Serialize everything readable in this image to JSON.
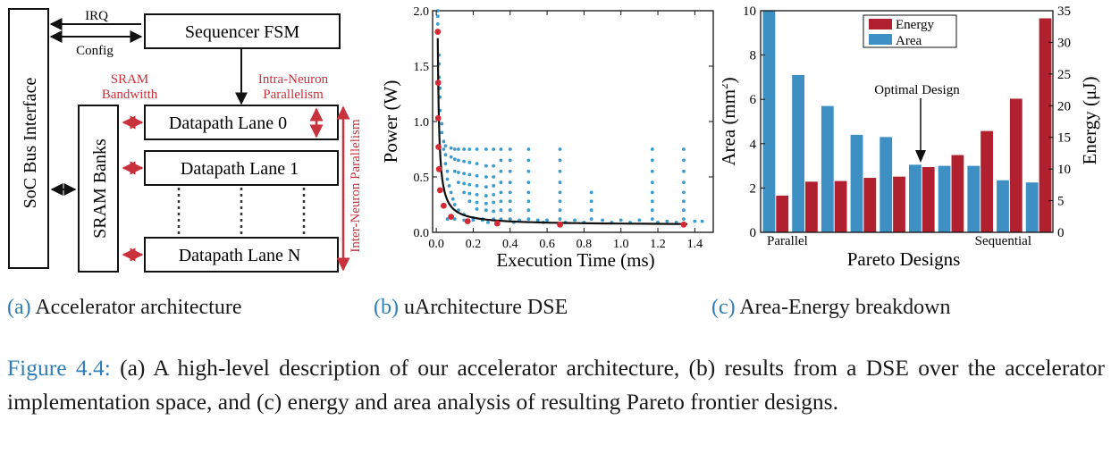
{
  "panel_a": {
    "soc_bus": "SoC Bus Interface",
    "sequencer": "Sequencer FSM",
    "irq": "IRQ",
    "config": "Config",
    "sram_bandwidth_line1": "SRAM",
    "sram_bandwidth_line2": "Bandwitth",
    "intra_line1": "Intra-Neuron",
    "intra_line2": "Parallelism",
    "inter": "Inter-Neuron Parallelism",
    "sram_banks": "SRAM Banks",
    "lane0": "Datapath Lane 0",
    "lane1": "Datapath Lane 1",
    "laneN": "Datapath Lane N",
    "accent_color": "#c8323c"
  },
  "chart_data": [
    {
      "type": "scatter",
      "xlabel": "Execution Time (ms)",
      "ylabel": "Power (W)",
      "xlim": [
        -0.02,
        1.5
      ],
      "ylim": [
        0,
        2.0
      ],
      "xticks": [
        "0.0",
        "0.2",
        "0.4",
        "0.6",
        "0.8",
        "1.0",
        "1.2",
        "1.4"
      ],
      "yticks": [
        "0.0",
        "0.5",
        "1.0",
        "1.5",
        "2.0"
      ],
      "design_points": [
        [
          0.008,
          2.0
        ],
        [
          0.008,
          1.95
        ],
        [
          0.008,
          1.88
        ],
        [
          0.015,
          1.6
        ],
        [
          0.015,
          1.52
        ],
        [
          0.015,
          1.4
        ],
        [
          0.02,
          1.3
        ],
        [
          0.02,
          1.22
        ],
        [
          0.02,
          1.1
        ],
        [
          0.03,
          0.98
        ],
        [
          0.03,
          0.9
        ],
        [
          0.04,
          0.82
        ],
        [
          0.04,
          0.75
        ],
        [
          0.05,
          0.7
        ],
        [
          0.05,
          0.62
        ],
        [
          0.06,
          0.55
        ],
        [
          0.06,
          0.48
        ],
        [
          0.07,
          0.42
        ],
        [
          0.08,
          0.36
        ],
        [
          0.09,
          0.3
        ],
        [
          0.1,
          0.25
        ],
        [
          0.12,
          0.2
        ],
        [
          0.15,
          0.16
        ],
        [
          0.2,
          0.13
        ],
        [
          0.25,
          0.12
        ],
        [
          0.05,
          0.78
        ],
        [
          0.08,
          0.76
        ],
        [
          0.1,
          0.75
        ],
        [
          0.12,
          0.75
        ],
        [
          0.15,
          0.75
        ],
        [
          0.18,
          0.75
        ],
        [
          0.22,
          0.75
        ],
        [
          0.27,
          0.75
        ],
        [
          0.08,
          0.68
        ],
        [
          0.1,
          0.66
        ],
        [
          0.12,
          0.65
        ],
        [
          0.15,
          0.64
        ],
        [
          0.18,
          0.63
        ],
        [
          0.22,
          0.62
        ],
        [
          0.27,
          0.6
        ],
        [
          0.1,
          0.55
        ],
        [
          0.12,
          0.54
        ],
        [
          0.15,
          0.53
        ],
        [
          0.18,
          0.52
        ],
        [
          0.22,
          0.51
        ],
        [
          0.27,
          0.5
        ],
        [
          0.12,
          0.45
        ],
        [
          0.15,
          0.44
        ],
        [
          0.18,
          0.43
        ],
        [
          0.22,
          0.42
        ],
        [
          0.27,
          0.41
        ],
        [
          0.15,
          0.36
        ],
        [
          0.18,
          0.35
        ],
        [
          0.22,
          0.34
        ],
        [
          0.27,
          0.33
        ],
        [
          0.18,
          0.28
        ],
        [
          0.22,
          0.27
        ],
        [
          0.27,
          0.26
        ],
        [
          0.22,
          0.21
        ],
        [
          0.27,
          0.2
        ],
        [
          0.31,
          0.12
        ],
        [
          0.31,
          0.19
        ],
        [
          0.31,
          0.27
        ],
        [
          0.31,
          0.34
        ],
        [
          0.31,
          0.42
        ],
        [
          0.31,
          0.5
        ],
        [
          0.31,
          0.6
        ],
        [
          0.31,
          0.75
        ],
        [
          0.35,
          0.12
        ],
        [
          0.35,
          0.2
        ],
        [
          0.35,
          0.28
        ],
        [
          0.35,
          0.36
        ],
        [
          0.35,
          0.45
        ],
        [
          0.35,
          0.55
        ],
        [
          0.35,
          0.65
        ],
        [
          0.35,
          0.75
        ],
        [
          0.4,
          0.12
        ],
        [
          0.4,
          0.2
        ],
        [
          0.4,
          0.28
        ],
        [
          0.4,
          0.36
        ],
        [
          0.4,
          0.45
        ],
        [
          0.4,
          0.55
        ],
        [
          0.4,
          0.65
        ],
        [
          0.4,
          0.75
        ],
        [
          0.5,
          0.12
        ],
        [
          0.5,
          0.2
        ],
        [
          0.5,
          0.28
        ],
        [
          0.5,
          0.36
        ],
        [
          0.5,
          0.45
        ],
        [
          0.5,
          0.55
        ],
        [
          0.5,
          0.65
        ],
        [
          0.5,
          0.75
        ],
        [
          0.67,
          0.12
        ],
        [
          0.67,
          0.2
        ],
        [
          0.67,
          0.28
        ],
        [
          0.67,
          0.36
        ],
        [
          0.67,
          0.45
        ],
        [
          0.67,
          0.55
        ],
        [
          0.67,
          0.65
        ],
        [
          0.67,
          0.75
        ],
        [
          0.84,
          0.12
        ],
        [
          0.84,
          0.2
        ],
        [
          0.84,
          0.28
        ],
        [
          0.84,
          0.36
        ],
        [
          1.17,
          0.12
        ],
        [
          1.17,
          0.2
        ],
        [
          1.17,
          0.28
        ],
        [
          1.17,
          0.36
        ],
        [
          1.17,
          0.45
        ],
        [
          1.17,
          0.55
        ],
        [
          1.17,
          0.65
        ],
        [
          1.17,
          0.75
        ],
        [
          1.34,
          0.12
        ],
        [
          1.34,
          0.2
        ],
        [
          1.34,
          0.28
        ],
        [
          1.34,
          0.36
        ],
        [
          1.34,
          0.45
        ],
        [
          1.34,
          0.55
        ],
        [
          1.34,
          0.65
        ],
        [
          1.34,
          0.75
        ],
        [
          0.06,
          0.12
        ],
        [
          0.1,
          0.12
        ],
        [
          0.15,
          0.11
        ],
        [
          0.2,
          0.11
        ],
        [
          0.25,
          0.11
        ],
        [
          0.45,
          0.11
        ],
        [
          0.55,
          0.11
        ],
        [
          0.6,
          0.11
        ],
        [
          0.75,
          0.11
        ],
        [
          0.9,
          0.11
        ],
        [
          1.0,
          0.11
        ],
        [
          1.1,
          0.11
        ],
        [
          1.25,
          0.1
        ],
        [
          1.4,
          0.1
        ],
        [
          1.44,
          0.1
        ],
        [
          0.28,
          0.09
        ],
        [
          0.42,
          0.09
        ],
        [
          0.58,
          0.09
        ],
        [
          0.7,
          0.09
        ],
        [
          0.8,
          0.09
        ],
        [
          0.95,
          0.09
        ],
        [
          1.05,
          0.09
        ],
        [
          1.2,
          0.09
        ],
        [
          1.3,
          0.09
        ]
      ],
      "pareto_points": [
        [
          0.008,
          1.81
        ],
        [
          0.01,
          1.35
        ],
        [
          0.01,
          1.03
        ],
        [
          0.012,
          0.77
        ],
        [
          0.015,
          0.57
        ],
        [
          0.02,
          0.38
        ],
        [
          0.04,
          0.24
        ],
        [
          0.08,
          0.14
        ],
        [
          0.17,
          0.1
        ],
        [
          0.33,
          0.08
        ],
        [
          0.67,
          0.07
        ],
        [
          1.34,
          0.07
        ]
      ],
      "point_color": "#3b9bd0",
      "pareto_color": "#d42a35",
      "curve_color": "#111111"
    },
    {
      "type": "bar",
      "xlabel": "Pareto Designs",
      "ylabel_left": "Area (mm",
      "ylabel_left_sup": "2",
      "ylabel_left_close": ")",
      "ylabel_right": "Energy (μJ)",
      "ylim_left": [
        0,
        10
      ],
      "ylim_right": [
        0,
        35
      ],
      "yticks_left": [
        "0",
        "2",
        "4",
        "6",
        "8",
        "10"
      ],
      "yticks_right": [
        "0",
        "5",
        "10",
        "15",
        "20",
        "25",
        "30",
        "35"
      ],
      "series": [
        {
          "name": "Energy",
          "axis": "right",
          "color": "#b0202e",
          "values": [
            5.8,
            8.0,
            8.1,
            8.6,
            8.8,
            10.3,
            12.2,
            16.0,
            21.1,
            33.8
          ]
        },
        {
          "name": "Area",
          "axis": "left",
          "color": "#3d8fc4",
          "values": [
            10.0,
            7.1,
            5.7,
            4.4,
            4.3,
            3.05,
            3.0,
            3.0,
            2.35,
            2.25
          ]
        }
      ],
      "left_label": "Parallel",
      "right_label": "Sequential",
      "annotation": "Optimal Design"
    }
  ],
  "captions": {
    "a_label": "(a)",
    "a_text": "Accelerator architecture",
    "b_label": "(b)",
    "b_text": "uArchitecture DSE",
    "c_label": "(c)",
    "c_text": "Area-Energy breakdown",
    "figure_label": "Figure 4.4:",
    "figure_text": "(a) A high-level description of our accelerator architecture, (b) results from a DSE over the accelerator implementation space, and (c) energy and area analysis of resulting Pareto frontier designs."
  }
}
